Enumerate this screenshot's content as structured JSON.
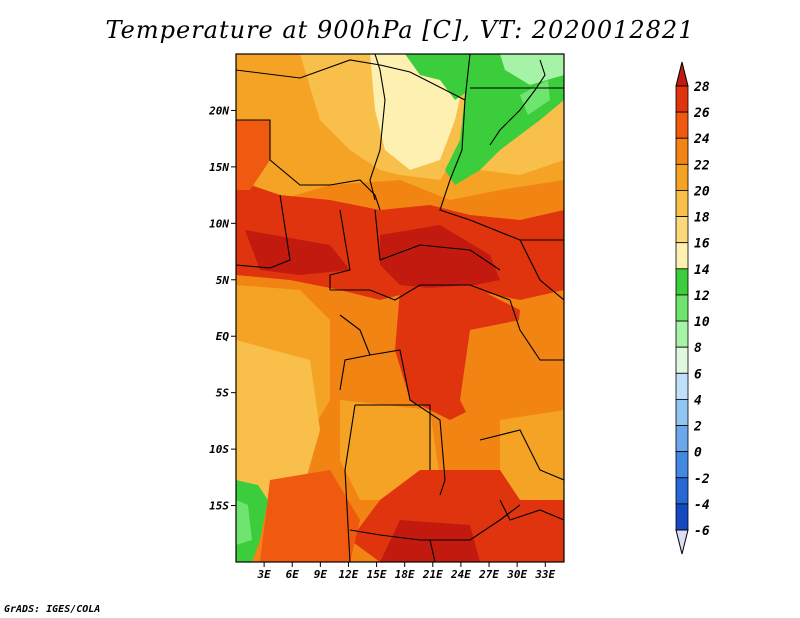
{
  "title": "Temperature at 900hPa [C], VT: 2020012821",
  "credit": "GrADS: IGES/COLA",
  "map": {
    "lon_range": [
      0,
      35
    ],
    "lat_range": [
      -20,
      25
    ],
    "x_ticks": [
      {
        "lon": 3,
        "label": "3E"
      },
      {
        "lon": 6,
        "label": "6E"
      },
      {
        "lon": 9,
        "label": "9E"
      },
      {
        "lon": 12,
        "label": "12E"
      },
      {
        "lon": 15,
        "label": "15E"
      },
      {
        "lon": 18,
        "label": "18E"
      },
      {
        "lon": 21,
        "label": "21E"
      },
      {
        "lon": 24,
        "label": "24E"
      },
      {
        "lon": 27,
        "label": "27E"
      },
      {
        "lon": 30,
        "label": "30E"
      },
      {
        "lon": 33,
        "label": "33E"
      }
    ],
    "y_ticks": [
      {
        "lat": 20,
        "label": "20N"
      },
      {
        "lat": 15,
        "label": "15N"
      },
      {
        "lat": 10,
        "label": "10N"
      },
      {
        "lat": 5,
        "label": "5N"
      },
      {
        "lat": 0,
        "label": "EQ"
      },
      {
        "lat": -5,
        "label": "5S"
      },
      {
        "lat": -10,
        "label": "10S"
      },
      {
        "lat": -15,
        "label": "15S"
      }
    ]
  },
  "colorbar": {
    "levels": [
      28,
      26,
      24,
      22,
      20,
      18,
      16,
      14,
      12,
      10,
      8,
      6,
      4,
      2,
      0,
      -2,
      -4,
      -6
    ],
    "colors": [
      "#c21a0e",
      "#e0340f",
      "#ef5a10",
      "#f28414",
      "#f5a324",
      "#f8c04a",
      "#fbd97a",
      "#fdf0b0",
      "#3ccd3c",
      "#6fe46f",
      "#a6f2a6",
      "#dff8df",
      "#bfe0f8",
      "#93c5f2",
      "#6aa8eb",
      "#4489e1",
      "#2568d6",
      "#1449c0",
      "#0b2e9a",
      "#0a1470"
    ],
    "top_color": "#c21a0e",
    "bottom_color": "#dcdcf8"
  }
}
